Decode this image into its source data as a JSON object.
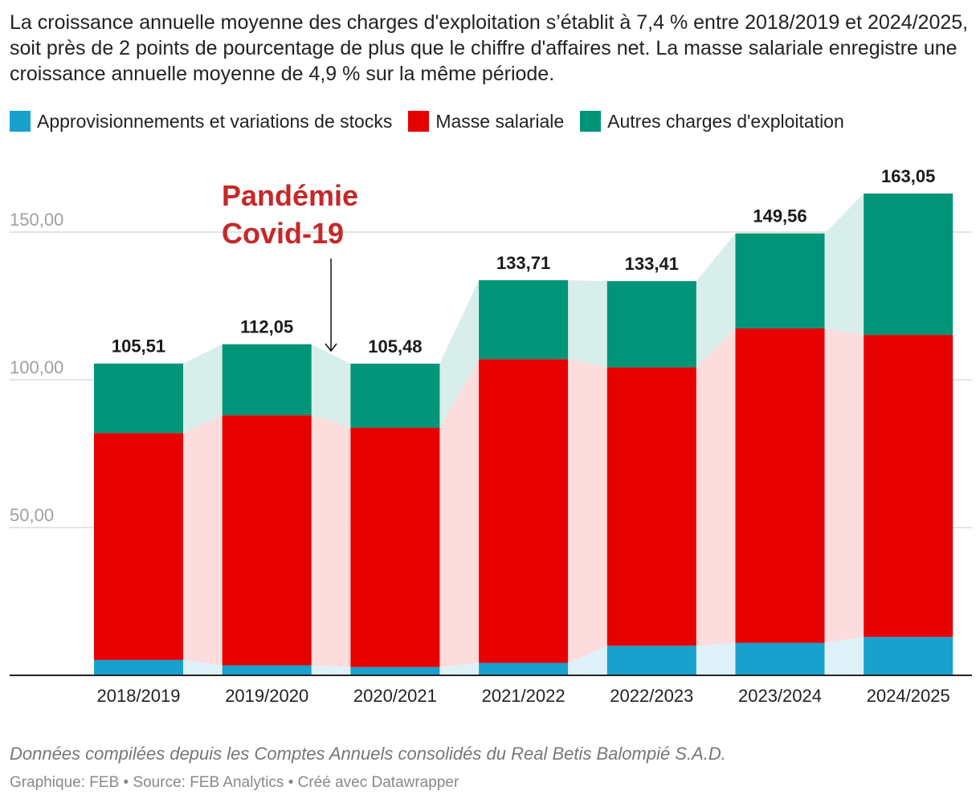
{
  "subtitle": "La croissance annuelle moyenne des charges d'exploitation s’établit à 7,4 % entre 2018/2019 et 2024/2025, soit près de 2 points de pourcentage de plus que le chiffre d'affaires net. La masse salariale enregistre une croissance annuelle moyenne de 4,9 % sur la même période.",
  "notes": "Données compilées depuis les Comptes Annuels consolidés du Real Betis Balompié S.A.D.",
  "credit": "Graphique: FEB • Source: FEB Analytics • Créé avec Datawrapper",
  "annotation": {
    "line1": "Pandémie",
    "line2": "Covid-19",
    "color": "#c62828",
    "between": [
      "2019/2020",
      "2020/2021"
    ]
  },
  "chart_data": {
    "type": "bar",
    "stacked": true,
    "categories": [
      "2018/2019",
      "2019/2020",
      "2020/2021",
      "2021/2022",
      "2022/2023",
      "2023/2024",
      "2024/2025"
    ],
    "series": [
      {
        "name": "Approvisionnements et variations de stocks",
        "color": "#18a1cd",
        "band_color": "#dff1f8",
        "values": [
          5.2,
          3.4,
          2.8,
          4.2,
          10.0,
          11.0,
          13.0
        ]
      },
      {
        "name": "Masse salariale",
        "color": "#e60000",
        "band_color": "#fcdcdc",
        "values": [
          76.8,
          84.6,
          81.0,
          102.8,
          94.2,
          106.4,
          102.2
        ]
      },
      {
        "name": "Autres charges d'exploitation",
        "color": "#009479",
        "band_color": "#d8eeea",
        "values": [
          23.51,
          24.05,
          21.68,
          26.71,
          29.21,
          32.16,
          47.85
        ]
      }
    ],
    "totals": [
      "105,51",
      "112,05",
      "105,48",
      "133,71",
      "133,41",
      "149,56",
      "163,05"
    ],
    "y_ticks": [
      {
        "value": 50,
        "label": "50,00"
      },
      {
        "value": 100,
        "label": "100,00"
      },
      {
        "value": 150,
        "label": "150,00"
      }
    ],
    "ylim": [
      0,
      163.05
    ],
    "grid": true,
    "legend_position": "top-left"
  }
}
